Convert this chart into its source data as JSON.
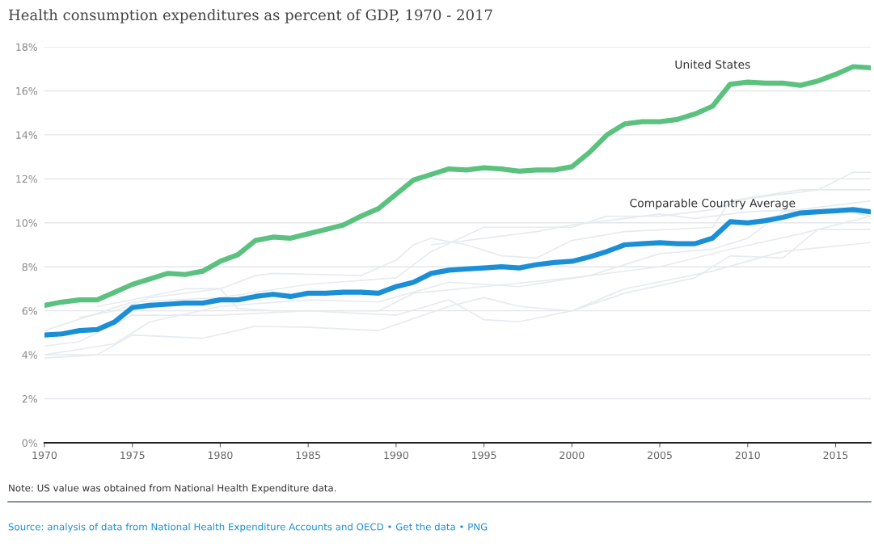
{
  "chart_data": {
    "type": "line",
    "title": "Health consumption expenditures as percent of GDP, 1970 - 2017",
    "annotations": [
      "Note: US value was obtained from National Health Expenditure data.",
      "Source: analysis of data from National Health Expenditure Accounts and OECD • Get the data • PNG"
    ],
    "xlim": [
      1970,
      2017
    ],
    "xticks": [
      1970,
      1975,
      1980,
      1985,
      1990,
      1995,
      2000,
      2005,
      2010,
      2015
    ],
    "ylim": [
      0,
      18
    ],
    "yticks": [
      {
        "value": 0,
        "label": "0%"
      },
      {
        "value": 2,
        "label": "2%"
      },
      {
        "value": 4,
        "label": "4%"
      },
      {
        "value": 6,
        "label": "6%"
      },
      {
        "value": 8,
        "label": "8%"
      },
      {
        "value": 10,
        "label": "10%"
      },
      {
        "value": 12,
        "label": "12%"
      },
      {
        "value": 14,
        "label": "14%"
      },
      {
        "value": 16,
        "label": "16%"
      },
      {
        "value": 18,
        "label": "18%"
      }
    ],
    "grid": "y",
    "legend": false,
    "marker": "none",
    "line_style": "solid",
    "x": [
      1970,
      1971,
      1972,
      1973,
      1974,
      1975,
      1976,
      1977,
      1978,
      1979,
      1980,
      1981,
      1982,
      1983,
      1984,
      1985,
      1986,
      1987,
      1988,
      1989,
      1990,
      1991,
      1992,
      1993,
      1994,
      1995,
      1996,
      1997,
      1998,
      1999,
      2000,
      2001,
      2002,
      2003,
      2004,
      2005,
      2006,
      2007,
      2008,
      2009,
      2010,
      2011,
      2012,
      2013,
      2014,
      2015,
      2016,
      2017
    ],
    "series": [
      {
        "color": "#e6ebf0",
        "x": [
          1970,
          1973,
          1975,
          1979,
          1982,
          1985,
          1989,
          1993,
          1995,
          1997,
          2000,
          2003,
          2007,
          2009,
          2012,
          2014,
          2017
        ],
        "values": [
          3.85,
          4.0,
          4.9,
          4.75,
          5.3,
          5.25,
          5.1,
          6.2,
          6.6,
          6.2,
          6.0,
          6.8,
          7.5,
          8.5,
          8.4,
          9.7,
          9.7
        ]
      },
      {
        "color": "#e6ebf0",
        "x": [
          1970,
          1972,
          1975,
          1980,
          1985,
          1990,
          1993,
          1995,
          1997,
          2000,
          2003,
          2008,
          2012,
          2017
        ],
        "values": [
          4.4,
          4.6,
          5.8,
          5.8,
          6.0,
          5.8,
          6.5,
          5.6,
          5.5,
          6.0,
          7.0,
          7.8,
          8.7,
          9.1
        ]
      },
      {
        "color": "#e6ebf0",
        "x": [
          1972,
          1974,
          1976,
          1980,
          1981,
          1983,
          1989,
          1991,
          1995,
          2000,
          2005,
          2009,
          2013,
          2017
        ],
        "values": [
          5.7,
          6.0,
          6.6,
          7.0,
          6.1,
          6.0,
          6.0,
          6.8,
          7.1,
          7.5,
          8.0,
          8.8,
          9.5,
          10.3
        ]
      },
      {
        "color": "#e6ebf0",
        "x": [
          1973,
          1975,
          1978,
          1980,
          1982,
          1983,
          1988,
          1990,
          1991,
          1992,
          1994,
          1996,
          1998,
          2000,
          2003,
          2008,
          2009,
          2013,
          2017
        ],
        "values": [
          6.2,
          6.5,
          7.0,
          7.0,
          7.6,
          7.7,
          7.6,
          8.3,
          9.0,
          9.3,
          9.0,
          8.5,
          8.4,
          9.2,
          9.6,
          9.8,
          11.0,
          11.5,
          11.5
        ]
      },
      {
        "color": "#e6ebf0",
        "x": [
          1970,
          1975,
          1980,
          1985,
          1990,
          1992,
          1995,
          2000,
          2002,
          2005,
          2008,
          2010,
          2014,
          2016,
          2017
        ],
        "values": [
          5.1,
          6.4,
          6.6,
          7.2,
          7.5,
          8.7,
          9.8,
          9.8,
          10.3,
          10.3,
          10.6,
          11.1,
          11.5,
          12.3,
          12.3
        ]
      },
      {
        "color": "#e6ebf0",
        "x": [
          1992,
          1995,
          1998,
          2000,
          2003,
          2005,
          2007,
          2010,
          2013,
          2017
        ],
        "values": [
          9.0,
          9.3,
          9.6,
          9.9,
          10.2,
          10.4,
          10.2,
          10.5,
          10.6,
          11.0
        ]
      },
      {
        "color": "#e6ebf0",
        "x": [
          1970,
          1974,
          1976,
          1980,
          1985,
          1989,
          1993,
          1997,
          2001,
          2005,
          2008,
          2010,
          2012,
          2015,
          2017
        ],
        "values": [
          4.0,
          4.5,
          5.5,
          6.2,
          6.5,
          6.4,
          7.3,
          7.1,
          7.6,
          8.6,
          8.8,
          9.3,
          10.5,
          10.6,
          10.3
        ]
      },
      {
        "name": "United States",
        "color": "#5bc17f",
        "values": [
          6.25,
          6.4,
          6.5,
          6.5,
          6.85,
          7.2,
          7.45,
          7.7,
          7.65,
          7.8,
          8.25,
          8.55,
          9.2,
          9.35,
          9.3,
          9.5,
          9.7,
          9.9,
          10.3,
          10.65,
          11.3,
          11.95,
          12.2,
          12.45,
          12.4,
          12.5,
          12.45,
          12.35,
          12.4,
          12.4,
          12.55,
          13.2,
          14.0,
          14.5,
          14.6,
          14.6,
          14.7,
          14.95,
          15.3,
          16.3,
          16.4,
          16.35,
          16.35,
          16.25,
          16.45,
          16.75,
          17.1,
          17.05
        ]
      },
      {
        "name": "Comparable Country Average",
        "color": "#1a8fd6",
        "values": [
          4.9,
          4.95,
          5.1,
          5.15,
          5.5,
          6.15,
          6.25,
          6.3,
          6.35,
          6.35,
          6.5,
          6.5,
          6.65,
          6.75,
          6.65,
          6.8,
          6.8,
          6.85,
          6.85,
          6.8,
          7.1,
          7.3,
          7.7,
          7.85,
          7.9,
          7.95,
          8.0,
          7.95,
          8.1,
          8.2,
          8.25,
          8.45,
          8.7,
          9.0,
          9.05,
          9.1,
          9.05,
          9.05,
          9.3,
          10.05,
          10.0,
          10.1,
          10.25,
          10.45,
          10.5,
          10.55,
          10.6,
          10.5
        ]
      }
    ]
  }
}
